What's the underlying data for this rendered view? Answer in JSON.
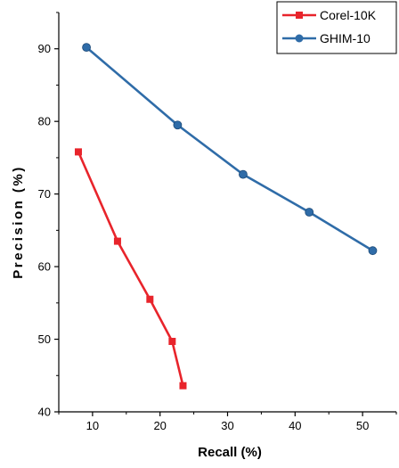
{
  "chart_data": {
    "type": "line",
    "title": "",
    "xlabel": "Recall (%)",
    "ylabel": "Precision (%)",
    "xlim": [
      5,
      55
    ],
    "ylim": [
      40,
      95
    ],
    "xticks": [
      10,
      20,
      30,
      40,
      50
    ],
    "yticks": [
      40,
      50,
      60,
      70,
      80,
      90
    ],
    "grid": false,
    "legend_position": "top-right",
    "series": [
      {
        "name": "Corel-10K",
        "color": "#e8242b",
        "marker": "square",
        "points": [
          [
            7.9,
            75.8
          ],
          [
            13.7,
            63.5
          ],
          [
            18.5,
            55.5
          ],
          [
            21.8,
            49.7
          ],
          [
            23.4,
            43.6
          ]
        ]
      },
      {
        "name": "GHIM-10",
        "color": "#2f6ca8",
        "marker": "circle",
        "points": [
          [
            9.1,
            90.2
          ],
          [
            22.6,
            79.5
          ],
          [
            32.3,
            72.7
          ],
          [
            42.1,
            67.5
          ],
          [
            51.5,
            62.2
          ]
        ]
      }
    ]
  }
}
